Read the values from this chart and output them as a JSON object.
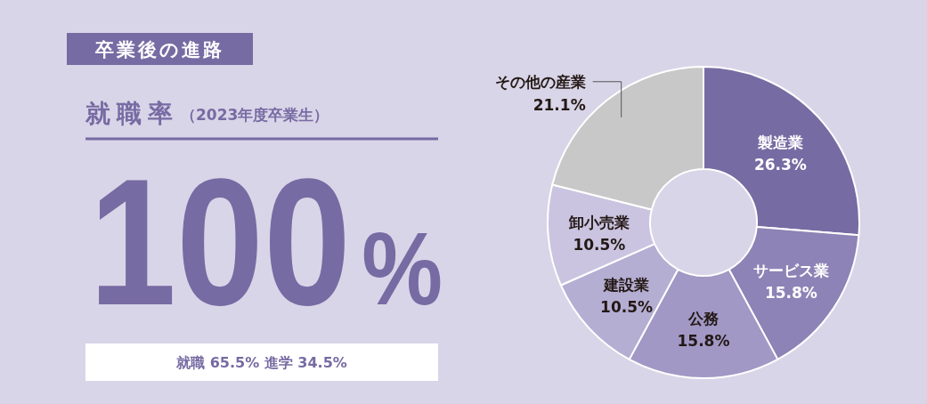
{
  "chart_data": [
    {
      "type": "other",
      "title": "卒業後の進路",
      "subtitle": "就職率",
      "annotations": [
        "（2023年度卒業生）",
        "100%",
        "就職 65.5% 進学 34.5%"
      ]
    },
    {
      "type": "donut",
      "categories": [
        "製造業",
        "サービス業",
        "公務",
        "建設業",
        "卸小売業",
        "その他の産業"
      ],
      "values": [
        26.3,
        15.8,
        15.8,
        10.5,
        10.5,
        21.1
      ],
      "colors": [
        "#776ba3",
        "#8d83b6",
        "#a198c5",
        "#b5aed3",
        "#cac4e0",
        "#c8c8c8"
      ],
      "value_labels": [
        "26.3%",
        "15.8%",
        "15.8%",
        "10.5%",
        "10.5%",
        "21.1%"
      ]
    }
  ]
}
